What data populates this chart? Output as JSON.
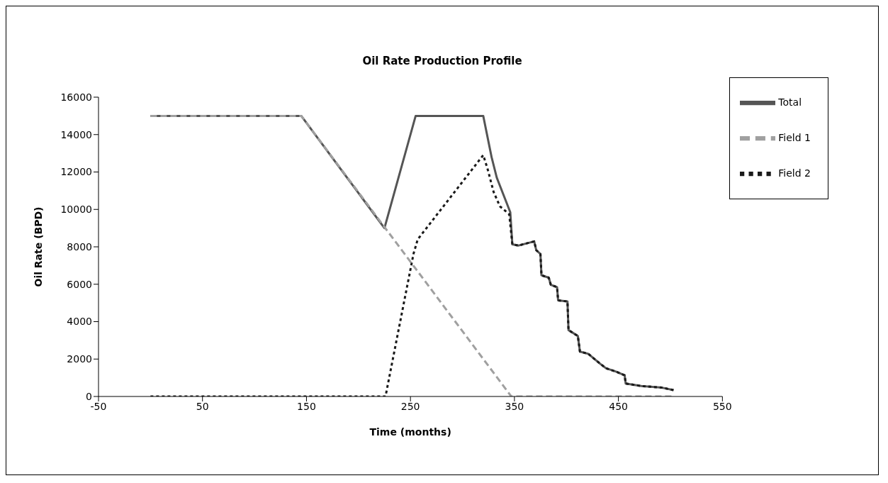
{
  "chart_data": {
    "type": "line",
    "title": "Oil Rate Production Profile",
    "xlabel": "Time (months)",
    "ylabel": "Oil Rate (BPD)",
    "xlim": [
      -50,
      550
    ],
    "xticks": [
      -50,
      50,
      150,
      250,
      350,
      450,
      550
    ],
    "ylim": [
      0,
      16000
    ],
    "yticks": [
      0,
      2000,
      4000,
      6000,
      8000,
      10000,
      12000,
      14000,
      16000
    ],
    "grid": false,
    "legend": "top right",
    "marker": "none",
    "series": [
      {
        "name": "Total",
        "color": "#555555",
        "line_style": "solid",
        "x": [
          0,
          145,
          225,
          255,
          320,
          328,
          333,
          346,
          348,
          354,
          369,
          371,
          375,
          376,
          383,
          385,
          391,
          392,
          401,
          402,
          411,
          413,
          421,
          432,
          438,
          448,
          456,
          457,
          472,
          492,
          503
        ],
        "values": [
          15000,
          15000,
          9000,
          15000,
          15000,
          12800,
          11700,
          9850,
          8130,
          8070,
          8290,
          7820,
          7620,
          6480,
          6350,
          5970,
          5840,
          5140,
          5080,
          3550,
          3230,
          2400,
          2280,
          1770,
          1510,
          1320,
          1130,
          690,
          560,
          470,
          340
        ]
      },
      {
        "name": "Field 1",
        "color": "#a0a0a0",
        "line_style": "dashed",
        "x": [
          0,
          145,
          347,
          503
        ],
        "values": [
          15000,
          15000,
          0,
          0
        ]
      },
      {
        "name": "Field 2",
        "color": "#1a1a1a",
        "line_style": "dotted",
        "x": [
          0,
          226,
          253,
          257,
          320,
          324,
          330,
          336,
          345,
          348,
          354,
          369,
          371,
          375,
          376,
          383,
          385,
          391,
          392,
          401,
          402,
          411,
          413,
          421,
          432,
          438,
          448,
          456,
          457,
          472,
          492,
          503
        ],
        "values": [
          0,
          0,
          7640,
          8400,
          12900,
          12200,
          10930,
          10170,
          9740,
          8130,
          8070,
          8290,
          7820,
          7620,
          6480,
          6350,
          5970,
          5840,
          5140,
          5080,
          3550,
          3230,
          2400,
          2280,
          1770,
          1510,
          1320,
          1130,
          690,
          560,
          470,
          340
        ]
      }
    ]
  }
}
